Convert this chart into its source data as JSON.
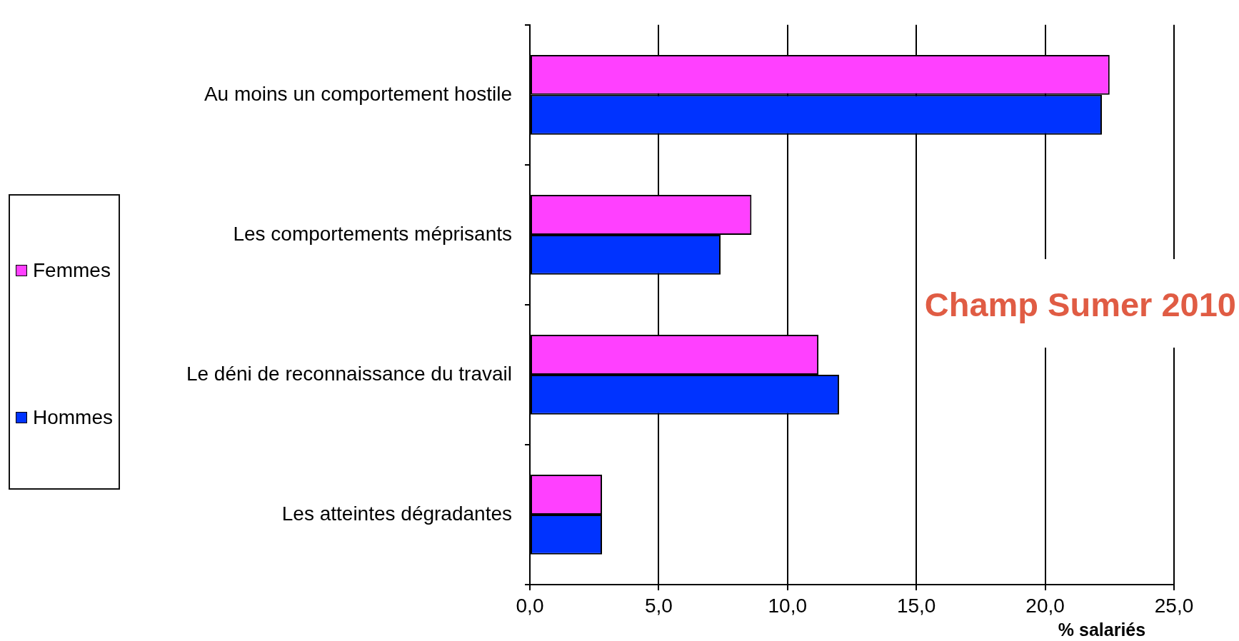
{
  "chart_data": {
    "type": "bar",
    "orientation": "horizontal",
    "categories": [
      "Au moins un comportement hostile",
      "Les comportements méprisants",
      "Le déni de reconnaissance du travail",
      "Les atteintes dégradantes"
    ],
    "series": [
      {
        "name": "Femmes",
        "color": "#ff40ff",
        "values": [
          22.5,
          8.6,
          11.2,
          2.8
        ]
      },
      {
        "name": "Hommes",
        "color": "#0033ff",
        "values": [
          22.2,
          7.4,
          12.0,
          2.8
        ]
      }
    ],
    "xlim": [
      0,
      25
    ],
    "xticks": [
      {
        "value": 0,
        "label": "0,0"
      },
      {
        "value": 5,
        "label": "5,0"
      },
      {
        "value": 10,
        "label": "10,0"
      },
      {
        "value": 15,
        "label": "15,0"
      },
      {
        "value": 20,
        "label": "20,0"
      },
      {
        "value": 25,
        "label": "25,0"
      }
    ],
    "xlabel": "% salariés",
    "annotations": [
      "Champ Sumer 2010"
    ],
    "grid": "x",
    "legend": "left"
  }
}
